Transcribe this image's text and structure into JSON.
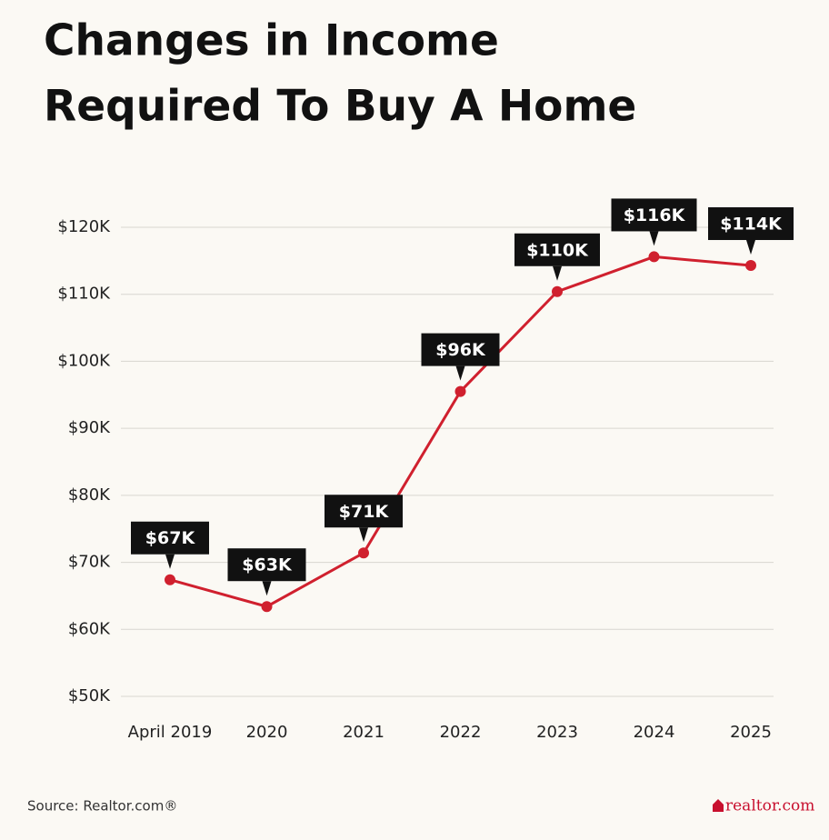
{
  "chart_data": {
    "type": "line",
    "title_lines": [
      "Changes in Income",
      "Required To Buy A Home"
    ],
    "categories": [
      "April 2019",
      "2020",
      "2021",
      "2022",
      "2023",
      "2024",
      "2025"
    ],
    "values": [
      67400,
      63400,
      71400,
      95500,
      110400,
      115600,
      114300
    ],
    "value_labels": [
      "$67K",
      "$63K",
      "$71K",
      "$96K",
      "$110K",
      "$116K",
      "$114K"
    ],
    "color": "#d0202e",
    "ylim": [
      50000,
      120000
    ],
    "yticks": [
      {
        "value": 50000,
        "label": "$50K"
      },
      {
        "value": 60000,
        "label": "$60K"
      },
      {
        "value": 70000,
        "label": "$70K"
      },
      {
        "value": 80000,
        "label": "$80K"
      },
      {
        "value": 90000,
        "label": "$90K"
      },
      {
        "value": 100000,
        "label": "$100K"
      },
      {
        "value": 110000,
        "label": "$110K"
      },
      {
        "value": 120000,
        "label": "$120K"
      }
    ],
    "grid": true,
    "source": "Source: Realtor.com®",
    "logo": "realtor.com"
  }
}
